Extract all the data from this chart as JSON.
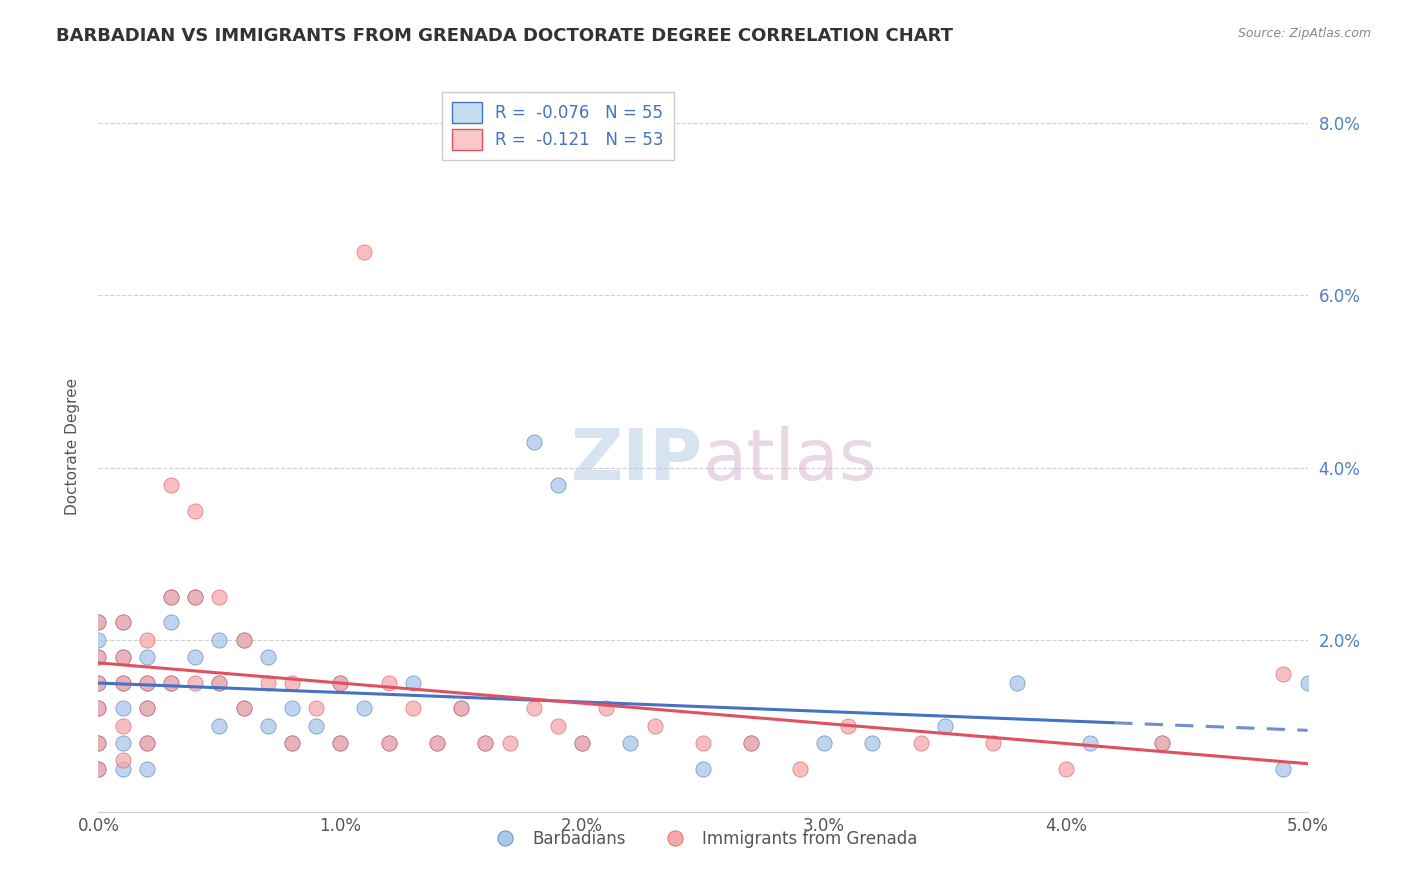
{
  "title": "BARBADIAN VS IMMIGRANTS FROM GRENADA DOCTORATE DEGREE CORRELATION CHART",
  "source": "Source: ZipAtlas.com",
  "ylabel": "Doctorate Degree",
  "xlim": [
    0.0,
    0.05
  ],
  "ylim": [
    0.0,
    0.085
  ],
  "xtick_labels": [
    "0.0%",
    "1.0%",
    "2.0%",
    "3.0%",
    "4.0%",
    "5.0%"
  ],
  "xtick_values": [
    0.0,
    0.01,
    0.02,
    0.03,
    0.04,
    0.05
  ],
  "ytick_labels": [
    "",
    "2.0%",
    "4.0%",
    "6.0%",
    "8.0%"
  ],
  "ytick_values": [
    0.0,
    0.02,
    0.04,
    0.06,
    0.08
  ],
  "legend_labels": [
    "Barbadians",
    "Immigrants from Grenada"
  ],
  "r_blue": -0.076,
  "n_blue": 55,
  "r_pink": -0.121,
  "n_pink": 53,
  "blue_color": "#a8c8e8",
  "pink_color": "#f4a8a8",
  "blue_fill_color": "#c5ddf0",
  "pink_fill_color": "#fac8c8",
  "blue_line_color": "#4472c4",
  "pink_line_color": "#e05060",
  "blue_line_dashed_color": "#7090c8",
  "scatter_alpha": 0.75,
  "scatter_size": 120,
  "blue_x": [
    0.0,
    0.0,
    0.0,
    0.0,
    0.0,
    0.0,
    0.0,
    0.001,
    0.001,
    0.001,
    0.001,
    0.001,
    0.001,
    0.002,
    0.002,
    0.002,
    0.002,
    0.002,
    0.003,
    0.003,
    0.003,
    0.004,
    0.004,
    0.005,
    0.005,
    0.005,
    0.006,
    0.006,
    0.007,
    0.007,
    0.008,
    0.008,
    0.009,
    0.01,
    0.01,
    0.011,
    0.012,
    0.013,
    0.014,
    0.015,
    0.016,
    0.018,
    0.019,
    0.02,
    0.022,
    0.025,
    0.027,
    0.03,
    0.032,
    0.035,
    0.038,
    0.041,
    0.044,
    0.049,
    0.05
  ],
  "blue_y": [
    0.018,
    0.02,
    0.022,
    0.015,
    0.012,
    0.008,
    0.005,
    0.022,
    0.018,
    0.015,
    0.012,
    0.008,
    0.005,
    0.018,
    0.015,
    0.012,
    0.008,
    0.005,
    0.025,
    0.022,
    0.015,
    0.025,
    0.018,
    0.02,
    0.015,
    0.01,
    0.02,
    0.012,
    0.018,
    0.01,
    0.012,
    0.008,
    0.01,
    0.015,
    0.008,
    0.012,
    0.008,
    0.015,
    0.008,
    0.012,
    0.008,
    0.043,
    0.038,
    0.008,
    0.008,
    0.005,
    0.008,
    0.008,
    0.008,
    0.01,
    0.015,
    0.008,
    0.008,
    0.005,
    0.015
  ],
  "pink_x": [
    0.0,
    0.0,
    0.0,
    0.0,
    0.0,
    0.0,
    0.001,
    0.001,
    0.001,
    0.001,
    0.001,
    0.002,
    0.002,
    0.002,
    0.002,
    0.003,
    0.003,
    0.003,
    0.004,
    0.004,
    0.004,
    0.005,
    0.005,
    0.006,
    0.006,
    0.007,
    0.008,
    0.008,
    0.009,
    0.01,
    0.01,
    0.011,
    0.012,
    0.012,
    0.013,
    0.014,
    0.015,
    0.016,
    0.017,
    0.018,
    0.019,
    0.02,
    0.021,
    0.023,
    0.025,
    0.027,
    0.029,
    0.031,
    0.034,
    0.037,
    0.04,
    0.044,
    0.049
  ],
  "pink_y": [
    0.022,
    0.018,
    0.015,
    0.012,
    0.008,
    0.005,
    0.022,
    0.018,
    0.015,
    0.01,
    0.006,
    0.02,
    0.015,
    0.012,
    0.008,
    0.038,
    0.025,
    0.015,
    0.035,
    0.025,
    0.015,
    0.025,
    0.015,
    0.02,
    0.012,
    0.015,
    0.015,
    0.008,
    0.012,
    0.015,
    0.008,
    0.065,
    0.015,
    0.008,
    0.012,
    0.008,
    0.012,
    0.008,
    0.008,
    0.012,
    0.01,
    0.008,
    0.012,
    0.01,
    0.008,
    0.008,
    0.005,
    0.01,
    0.008,
    0.008,
    0.005,
    0.008,
    0.016
  ],
  "watermark_zip": "ZIP",
  "watermark_atlas": "atlas",
  "grid_color": "#d0d0d0",
  "background_color": "#ffffff",
  "tick_label_color": "#555555",
  "right_tick_color": "#5080c0",
  "title_color": "#333333",
  "source_color": "#888888"
}
